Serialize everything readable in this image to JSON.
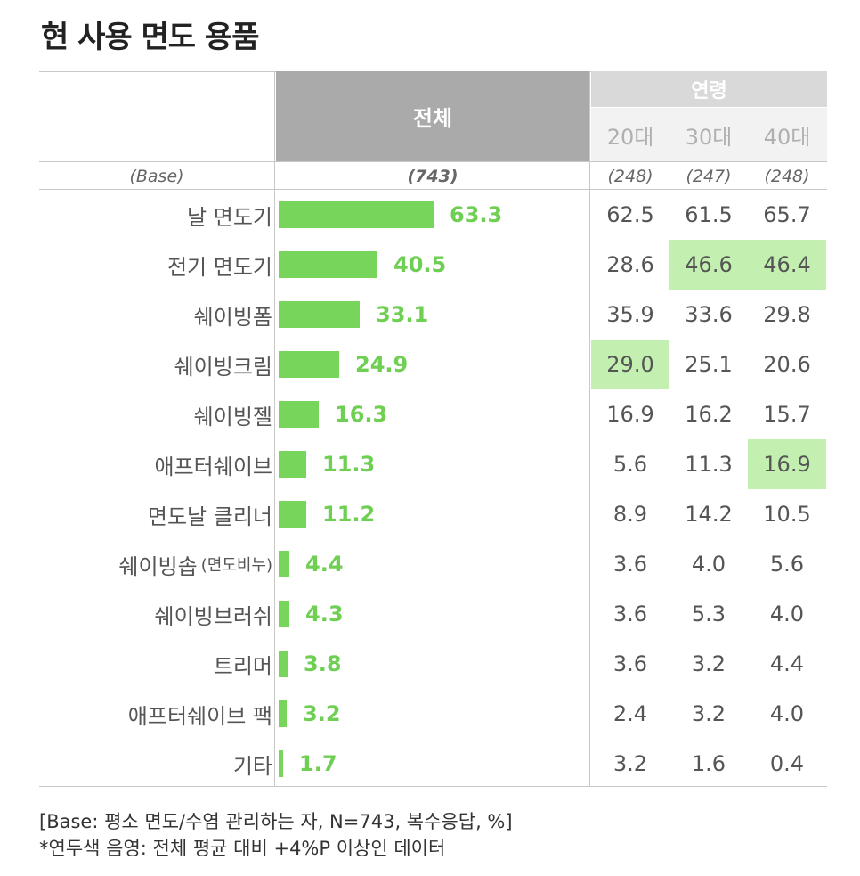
{
  "title": "현 사용 면도 용품",
  "header": {
    "total_label": "전체",
    "age_group_label": "연령",
    "age_columns": [
      "20대",
      "30대",
      "40대"
    ]
  },
  "base": {
    "label": "(Base)",
    "total": "(743)",
    "ages": [
      "(248)",
      "(247)",
      "(248)"
    ]
  },
  "chart_data": {
    "type": "bar",
    "orientation": "horizontal",
    "title": "현 사용 면도 용품",
    "categories": [
      "날 면도기",
      "전기 면도기",
      "쉐이빙폼",
      "쉐이빙크림",
      "쉐이빙젤",
      "애프터쉐이브",
      "면도날 클리너",
      "쉐이빙솝",
      "쉐이빙브러쉬",
      "트리머",
      "애프터쉐이브 팩",
      "기타"
    ],
    "category_notes": [
      "",
      "",
      "",
      "",
      "",
      "",
      "",
      "(면도비누)",
      "",
      "",
      "",
      ""
    ],
    "series": [
      {
        "name": "전체",
        "values": [
          63.3,
          40.5,
          33.1,
          24.9,
          16.3,
          11.3,
          11.2,
          4.4,
          4.3,
          3.8,
          3.2,
          1.7
        ]
      }
    ],
    "value_labels": [
      "63.3",
      "40.5",
      "33.1",
      "24.9",
      "16.3",
      "11.3",
      "11.2",
      "4.4",
      "4.3",
      "3.8",
      "3.2",
      "1.7"
    ],
    "xlim": [
      0,
      100
    ],
    "bar_color": "#76d55a",
    "label_color": "#6ecf52"
  },
  "age_table": {
    "columns": [
      "20대",
      "30대",
      "40대"
    ],
    "rows": [
      [
        "62.5",
        "61.5",
        "65.7"
      ],
      [
        "28.6",
        "46.6",
        "46.4"
      ],
      [
        "35.9",
        "33.6",
        "29.8"
      ],
      [
        "29.0",
        "25.1",
        "20.6"
      ],
      [
        "16.9",
        "16.2",
        "15.7"
      ],
      [
        "5.6",
        "11.3",
        "16.9"
      ],
      [
        "8.9",
        "14.2",
        "10.5"
      ],
      [
        "3.6",
        "4.0",
        "5.6"
      ],
      [
        "3.6",
        "5.3",
        "4.0"
      ],
      [
        "3.6",
        "3.2",
        "4.4"
      ],
      [
        "2.4",
        "3.2",
        "4.0"
      ],
      [
        "3.2",
        "1.6",
        "0.4"
      ]
    ],
    "highlighted": [
      [
        1,
        1
      ],
      [
        1,
        2
      ],
      [
        3,
        0
      ],
      [
        5,
        2
      ]
    ],
    "highlight_color": "#c3f0b0"
  },
  "footnotes": [
    "[Base: 평소 면도/수염 관리하는 자, N=743, 복수응답, %]",
    "*연두색 음영: 전체 평균 대비 +4%P 이상인 데이터"
  ]
}
